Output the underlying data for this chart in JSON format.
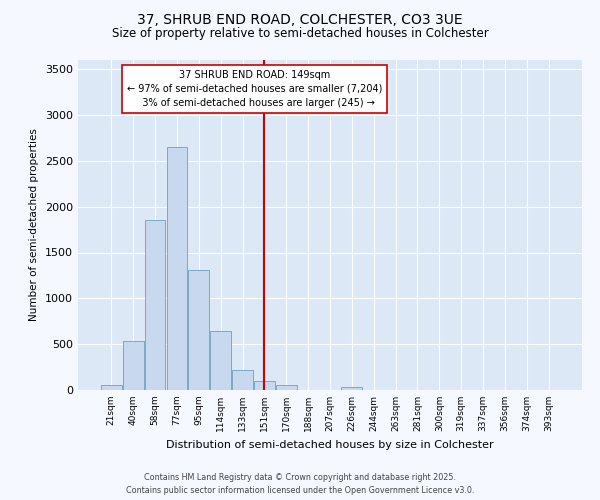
{
  "title": "37, SHRUB END ROAD, COLCHESTER, CO3 3UE",
  "subtitle": "Size of property relative to semi-detached houses in Colchester",
  "xlabel": "Distribution of semi-detached houses by size in Colchester",
  "ylabel": "Number of semi-detached properties",
  "categories": [
    "21sqm",
    "40sqm",
    "58sqm",
    "77sqm",
    "95sqm",
    "114sqm",
    "133sqm",
    "151sqm",
    "170sqm",
    "188sqm",
    "207sqm",
    "226sqm",
    "244sqm",
    "263sqm",
    "281sqm",
    "300sqm",
    "319sqm",
    "337sqm",
    "356sqm",
    "374sqm",
    "393sqm"
  ],
  "bar_values": [
    55,
    530,
    1850,
    2650,
    1310,
    640,
    215,
    95,
    50,
    0,
    0,
    35,
    0,
    0,
    0,
    0,
    0,
    0,
    0,
    0,
    0
  ],
  "bar_color": "#c8d8ee",
  "bar_edge_color": "#7aaac8",
  "property_line_idx": 7,
  "property_label": "37 SHRUB END ROAD: 149sqm",
  "smaller_pct": "97%",
  "smaller_count": "7,204",
  "larger_pct": "3%",
  "larger_count": "245",
  "annotation_box_color": "#ffffff",
  "annotation_box_edge": "#cc0000",
  "vline_color": "#cc0000",
  "ylim": [
    0,
    3600
  ],
  "yticks": [
    0,
    500,
    1000,
    1500,
    2000,
    2500,
    3000,
    3500
  ],
  "background_color": "#dce8f5",
  "grid_color": "#ffffff",
  "fig_background": "#f5f8ff",
  "footer_line1": "Contains HM Land Registry data © Crown copyright and database right 2025.",
  "footer_line2": "Contains public sector information licensed under the Open Government Licence v3.0."
}
